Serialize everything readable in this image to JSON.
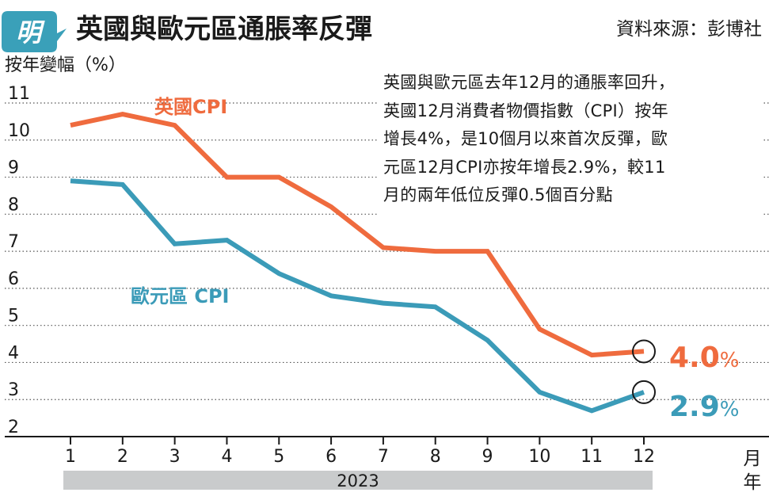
{
  "header": {
    "logo_char": "明",
    "title": "英國與歐元區通脹率反彈",
    "source": "資料來源：彭博社"
  },
  "annotation": {
    "lines": [
      "英國與歐元區去年12月的通脹率回升，",
      "英國12月消費者物價指數（CPI）按年",
      "增長4%，是10個月以來首次反彈，歐",
      "元區12月CPI亦按年增長2.9%，較11",
      "月的兩年低位反彈0.5個百分點"
    ]
  },
  "chart_data": {
    "type": "line",
    "title": "英國與歐元區通脹率反彈",
    "ylabel": "按年變幅（%）",
    "xlabel_lines": [
      "月",
      "年"
    ],
    "year_label": "2023",
    "ylim": [
      2,
      11
    ],
    "y_ticks": [
      2,
      3,
      4,
      5,
      6,
      7,
      8,
      9,
      10,
      11
    ],
    "x": [
      1,
      2,
      3,
      4,
      5,
      6,
      7,
      8,
      9,
      10,
      11,
      12
    ],
    "x_tick_labels": [
      "1",
      "2",
      "3",
      "4",
      "5",
      "6",
      "7",
      "8",
      "9",
      "10",
      "11",
      "12"
    ],
    "grid": "horizontal dotted",
    "series": [
      {
        "name": "英國CPI",
        "color": "#ef6b3e",
        "values": [
          10.1,
          10.4,
          10.1,
          8.7,
          8.7,
          7.9,
          6.8,
          6.7,
          6.7,
          4.6,
          3.9,
          4.0
        ],
        "end_label": "4.0",
        "end_unit": "%"
      },
      {
        "name": "歐元區 CPI",
        "color": "#3b9bb8",
        "values": [
          8.6,
          8.5,
          6.9,
          7.0,
          6.1,
          5.5,
          5.3,
          5.2,
          4.3,
          2.9,
          2.4,
          2.9
        ],
        "end_label": "2.9",
        "end_unit": "%"
      }
    ]
  }
}
